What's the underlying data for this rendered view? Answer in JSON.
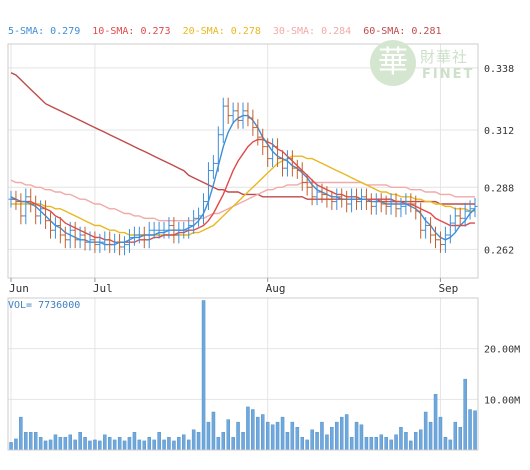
{
  "legend": {
    "sma5": {
      "label": "5-SMA: 0.279",
      "color": "#3e8ed8"
    },
    "sma10": {
      "label": "10-SMA: 0.273",
      "color": "#e04a4a"
    },
    "sma20": {
      "label": "20-SMA: 0.278",
      "color": "#e8b820"
    },
    "sma30": {
      "label": "30-SMA: 0.284",
      "color": "#f0aaa8"
    },
    "sma60": {
      "label": "60-SMA: 0.281",
      "color": "#c04a4a"
    }
  },
  "volume_label": "VOL= 7736000",
  "logo": {
    "seal_char": "華",
    "name_cn": "財華社",
    "name_en": "FINET"
  },
  "chart_data": [
    {
      "type": "ohlc",
      "x_labels": [
        "Jun",
        "Jul",
        "Aug",
        "Sep"
      ],
      "x_label_index": [
        0,
        17,
        52,
        87
      ],
      "y_ticks": [
        0.338,
        0.312,
        0.288,
        0.262
      ],
      "ylim": [
        0.25,
        0.348
      ],
      "close": [
        0.283,
        0.282,
        0.276,
        0.284,
        0.281,
        0.276,
        0.279,
        0.274,
        0.27,
        0.272,
        0.268,
        0.266,
        0.27,
        0.266,
        0.268,
        0.265,
        0.266,
        0.264,
        0.265,
        0.266,
        0.264,
        0.265,
        0.263,
        0.264,
        0.267,
        0.268,
        0.268,
        0.266,
        0.27,
        0.27,
        0.27,
        0.27,
        0.272,
        0.268,
        0.27,
        0.27,
        0.272,
        0.275,
        0.276,
        0.282,
        0.295,
        0.298,
        0.31,
        0.322,
        0.318,
        0.32,
        0.316,
        0.32,
        0.317,
        0.313,
        0.309,
        0.305,
        0.3,
        0.305,
        0.3,
        0.296,
        0.3,
        0.296,
        0.295,
        0.29,
        0.288,
        0.284,
        0.286,
        0.285,
        0.283,
        0.282,
        0.284,
        0.283,
        0.281,
        0.284,
        0.282,
        0.284,
        0.282,
        0.28,
        0.282,
        0.281,
        0.28,
        0.282,
        0.279,
        0.28,
        0.282,
        0.281,
        0.278,
        0.27,
        0.272,
        0.268,
        0.266,
        0.264,
        0.268,
        0.273,
        0.276,
        0.275,
        0.278,
        0.279,
        0.28
      ],
      "sma5": [
        0.284,
        0.283,
        0.282,
        0.282,
        0.281,
        0.28,
        0.278,
        0.276,
        0.274,
        0.272,
        0.271,
        0.269,
        0.268,
        0.267,
        0.266,
        0.266,
        0.265,
        0.265,
        0.265,
        0.264,
        0.264,
        0.264,
        0.265,
        0.265,
        0.266,
        0.267,
        0.267,
        0.268,
        0.268,
        0.268,
        0.269,
        0.269,
        0.27,
        0.27,
        0.27,
        0.27,
        0.271,
        0.272,
        0.274,
        0.277,
        0.282,
        0.289,
        0.297,
        0.305,
        0.311,
        0.315,
        0.317,
        0.318,
        0.318,
        0.316,
        0.313,
        0.309,
        0.306,
        0.303,
        0.301,
        0.3,
        0.299,
        0.297,
        0.296,
        0.294,
        0.292,
        0.289,
        0.287,
        0.286,
        0.285,
        0.284,
        0.284,
        0.283,
        0.283,
        0.283,
        0.283,
        0.283,
        0.283,
        0.282,
        0.282,
        0.282,
        0.281,
        0.281,
        0.281,
        0.281,
        0.281,
        0.28,
        0.279,
        0.277,
        0.274,
        0.272,
        0.269,
        0.267,
        0.266,
        0.267,
        0.269,
        0.272,
        0.274,
        0.277,
        0.279
      ],
      "sma10": [
        0.283,
        0.283,
        0.282,
        0.282,
        0.282,
        0.281,
        0.28,
        0.279,
        0.278,
        0.276,
        0.275,
        0.273,
        0.272,
        0.271,
        0.27,
        0.269,
        0.268,
        0.267,
        0.267,
        0.266,
        0.266,
        0.265,
        0.265,
        0.265,
        0.265,
        0.265,
        0.266,
        0.266,
        0.266,
        0.267,
        0.267,
        0.268,
        0.268,
        0.268,
        0.269,
        0.269,
        0.27,
        0.27,
        0.271,
        0.272,
        0.274,
        0.277,
        0.281,
        0.285,
        0.29,
        0.295,
        0.299,
        0.302,
        0.305,
        0.307,
        0.308,
        0.308,
        0.307,
        0.306,
        0.304,
        0.303,
        0.301,
        0.299,
        0.297,
        0.295,
        0.293,
        0.291,
        0.289,
        0.288,
        0.287,
        0.286,
        0.285,
        0.285,
        0.284,
        0.284,
        0.284,
        0.283,
        0.283,
        0.283,
        0.283,
        0.282,
        0.282,
        0.282,
        0.282,
        0.282,
        0.281,
        0.281,
        0.28,
        0.279,
        0.278,
        0.277,
        0.275,
        0.274,
        0.273,
        0.272,
        0.272,
        0.272,
        0.272,
        0.273,
        0.273
      ],
      "sma20": [
        0.281,
        0.281,
        0.281,
        0.281,
        0.281,
        0.281,
        0.281,
        0.28,
        0.28,
        0.279,
        0.279,
        0.278,
        0.277,
        0.276,
        0.275,
        0.274,
        0.273,
        0.272,
        0.272,
        0.271,
        0.27,
        0.27,
        0.269,
        0.269,
        0.268,
        0.268,
        0.268,
        0.268,
        0.268,
        0.268,
        0.268,
        0.268,
        0.268,
        0.268,
        0.268,
        0.268,
        0.268,
        0.269,
        0.269,
        0.27,
        0.271,
        0.272,
        0.274,
        0.276,
        0.278,
        0.28,
        0.282,
        0.284,
        0.286,
        0.288,
        0.29,
        0.292,
        0.294,
        0.296,
        0.298,
        0.299,
        0.3,
        0.301,
        0.301,
        0.301,
        0.3,
        0.3,
        0.299,
        0.298,
        0.297,
        0.296,
        0.295,
        0.294,
        0.293,
        0.292,
        0.291,
        0.29,
        0.289,
        0.288,
        0.287,
        0.286,
        0.286,
        0.285,
        0.285,
        0.284,
        0.284,
        0.284,
        0.283,
        0.283,
        0.282,
        0.282,
        0.281,
        0.281,
        0.28,
        0.28,
        0.279,
        0.279,
        0.279,
        0.278,
        0.278
      ],
      "sma30": [
        0.291,
        0.29,
        0.29,
        0.289,
        0.289,
        0.288,
        0.288,
        0.287,
        0.287,
        0.286,
        0.286,
        0.285,
        0.285,
        0.284,
        0.283,
        0.283,
        0.282,
        0.281,
        0.281,
        0.28,
        0.279,
        0.279,
        0.278,
        0.277,
        0.277,
        0.276,
        0.276,
        0.275,
        0.275,
        0.275,
        0.274,
        0.274,
        0.274,
        0.274,
        0.274,
        0.274,
        0.274,
        0.274,
        0.275,
        0.275,
        0.276,
        0.277,
        0.277,
        0.278,
        0.279,
        0.28,
        0.281,
        0.282,
        0.283,
        0.284,
        0.285,
        0.286,
        0.287,
        0.287,
        0.288,
        0.288,
        0.289,
        0.289,
        0.289,
        0.29,
        0.29,
        0.29,
        0.29,
        0.29,
        0.29,
        0.29,
        0.29,
        0.29,
        0.29,
        0.29,
        0.29,
        0.29,
        0.289,
        0.289,
        0.289,
        0.289,
        0.289,
        0.288,
        0.288,
        0.288,
        0.288,
        0.287,
        0.287,
        0.287,
        0.286,
        0.286,
        0.286,
        0.285,
        0.285,
        0.285,
        0.284,
        0.284,
        0.284,
        0.284,
        0.284
      ],
      "sma60": [
        0.336,
        0.335,
        0.333,
        0.331,
        0.329,
        0.327,
        0.325,
        0.323,
        0.322,
        0.321,
        0.32,
        0.319,
        0.318,
        0.317,
        0.316,
        0.315,
        0.314,
        0.313,
        0.312,
        0.311,
        0.31,
        0.309,
        0.308,
        0.307,
        0.306,
        0.305,
        0.304,
        0.303,
        0.302,
        0.301,
        0.3,
        0.299,
        0.298,
        0.297,
        0.296,
        0.295,
        0.293,
        0.292,
        0.291,
        0.29,
        0.289,
        0.288,
        0.287,
        0.287,
        0.286,
        0.286,
        0.286,
        0.285,
        0.285,
        0.285,
        0.285,
        0.284,
        0.284,
        0.284,
        0.284,
        0.284,
        0.284,
        0.284,
        0.284,
        0.284,
        0.283,
        0.283,
        0.283,
        0.283,
        0.283,
        0.283,
        0.283,
        0.283,
        0.283,
        0.283,
        0.283,
        0.283,
        0.283,
        0.283,
        0.283,
        0.283,
        0.283,
        0.283,
        0.282,
        0.282,
        0.282,
        0.282,
        0.282,
        0.282,
        0.282,
        0.282,
        0.282,
        0.281,
        0.281,
        0.281,
        0.281,
        0.281,
        0.281,
        0.281,
        0.281
      ]
    },
    {
      "type": "bar",
      "title": "VOL= 7736000",
      "y_ticks": [
        20000000,
        10000000
      ],
      "y_tick_labels": [
        "20.00M",
        "10.00M"
      ],
      "ylim": [
        0,
        30000000
      ],
      "values": [
        1500000,
        2200000,
        6500000,
        3500000,
        3500000,
        3500000,
        2500000,
        1800000,
        2000000,
        3000000,
        2500000,
        2500000,
        3000000,
        2000000,
        3500000,
        2500000,
        1800000,
        2000000,
        1800000,
        3000000,
        2500000,
        2000000,
        2500000,
        1800000,
        2500000,
        3500000,
        2000000,
        1800000,
        2500000,
        2000000,
        3500000,
        2000000,
        2500000,
        1800000,
        2500000,
        3000000,
        2000000,
        4000000,
        3500000,
        29500000,
        5500000,
        7500000,
        2500000,
        3500000,
        6000000,
        2500000,
        5500000,
        3500000,
        8500000,
        8000000,
        6500000,
        7000000,
        5500000,
        5000000,
        5500000,
        6500000,
        3500000,
        5500000,
        4500000,
        2500000,
        2000000,
        4000000,
        3500000,
        5500000,
        3000000,
        4500000,
        5500000,
        6500000,
        7000000,
        2500000,
        5500000,
        5000000,
        2500000,
        2500000,
        2500000,
        3000000,
        2500000,
        2000000,
        3000000,
        4500000,
        3500000,
        1800000,
        3500000,
        4000000,
        7500000,
        5500000,
        11000000,
        6500000,
        2500000,
        2000000,
        5500000,
        4500000,
        14000000,
        8000000,
        7736000
      ]
    }
  ]
}
